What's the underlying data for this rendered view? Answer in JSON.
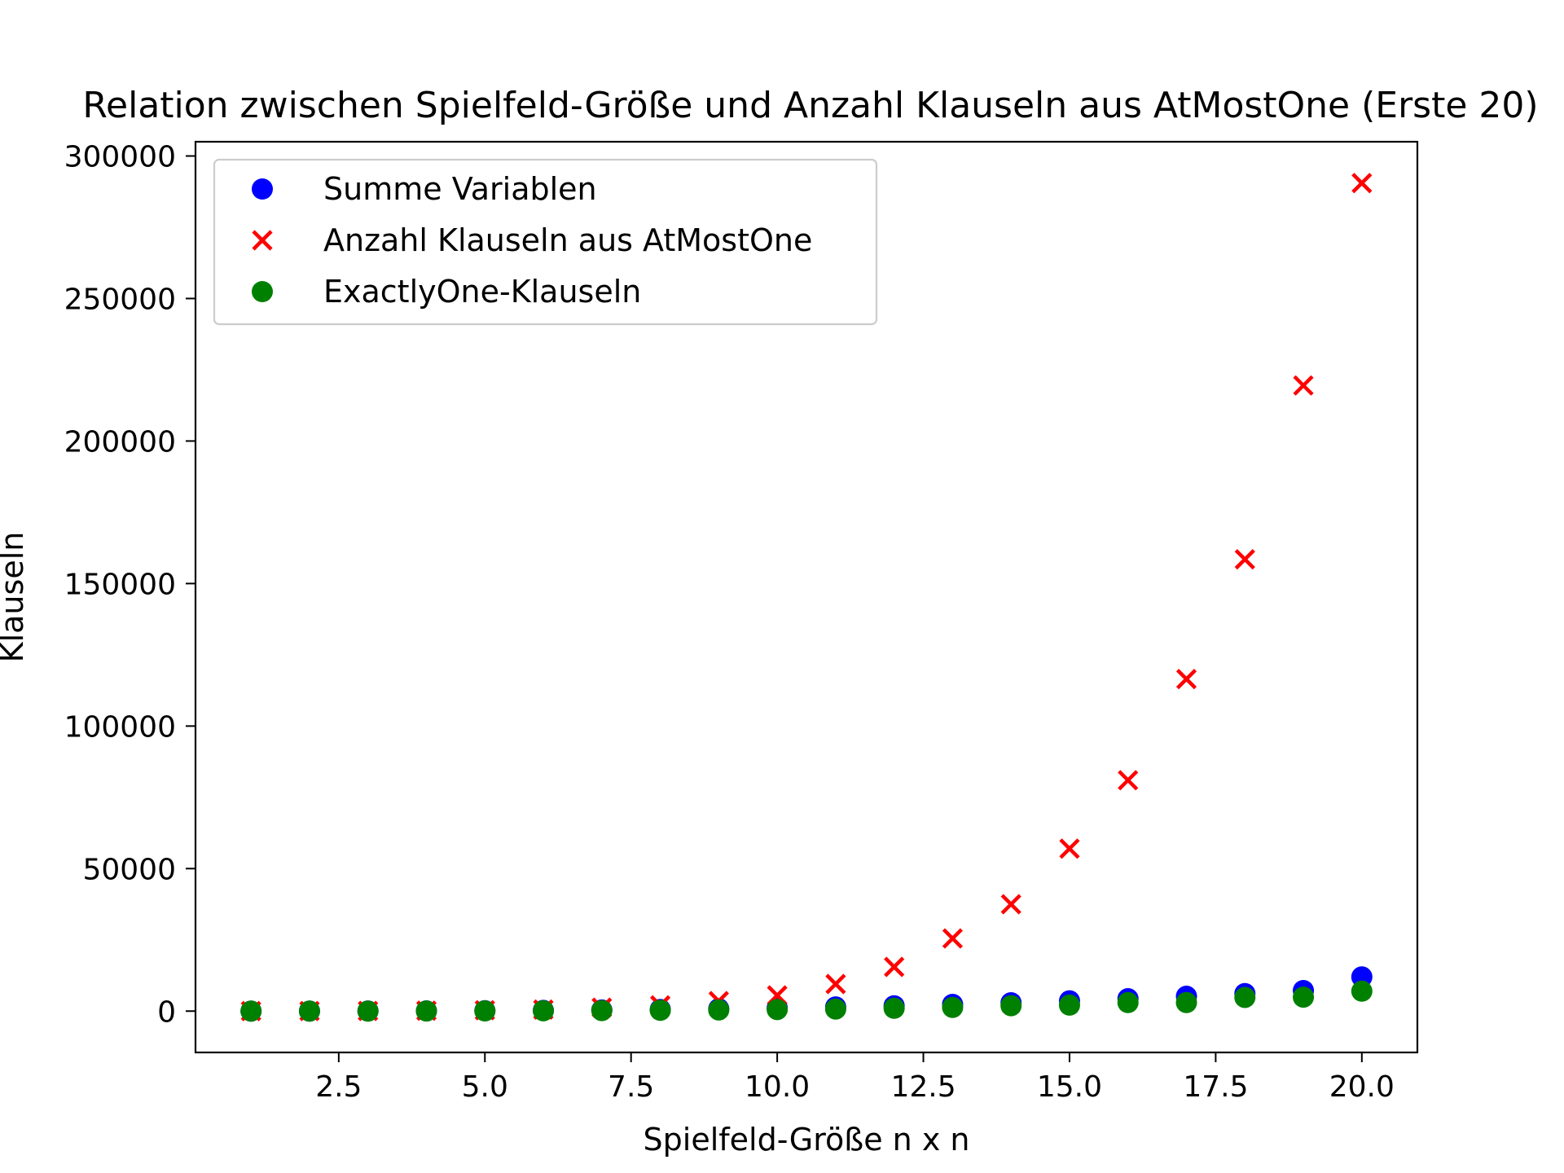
{
  "chart_data": {
    "type": "scatter",
    "title": "Relation zwischen Spielfeld-Größe und Anzahl Klauseln aus AtMostOne (Erste 20)",
    "xlabel": "Spielfeld-Größe n x n",
    "ylabel": "Klauseln",
    "xlim": [
      0.05,
      20.95
    ],
    "ylim": [
      -14500,
      305000
    ],
    "xticks": [
      2.5,
      5.0,
      7.5,
      10.0,
      12.5,
      15.0,
      17.5,
      20.0
    ],
    "xtick_labels": [
      "2.5",
      "5.0",
      "7.5",
      "10.0",
      "12.5",
      "15.0",
      "17.5",
      "20.0"
    ],
    "yticks": [
      0,
      50000,
      100000,
      150000,
      200000,
      250000,
      300000
    ],
    "ytick_labels": [
      "0",
      "50000",
      "100000",
      "150000",
      "200000",
      "250000",
      "300000"
    ],
    "grid": false,
    "legend_position": "upper-left",
    "x": [
      1,
      2,
      3,
      4,
      5,
      6,
      7,
      8,
      9,
      10,
      11,
      12,
      13,
      14,
      15,
      16,
      17,
      18,
      19,
      20
    ],
    "series": [
      {
        "name": "Summe Variablen",
        "marker": "circle",
        "color": "#0000ff",
        "values": [
          2,
          12,
          36,
          80,
          150,
          252,
          392,
          576,
          810,
          1100,
          1452,
          1872,
          2366,
          2940,
          3600,
          4352,
          5202,
          6156,
          7220,
          12000
        ]
      },
      {
        "name": "Anzahl Klauseln aus AtMostOne",
        "marker": "x",
        "color": "#ff0000",
        "values": [
          0,
          12,
          54,
          144,
          300,
          540,
          1200,
          2000,
          3500,
          5500,
          9500,
          15500,
          25500,
          37500,
          57000,
          81000,
          116500,
          158500,
          219500,
          290500
        ]
      },
      {
        "name": "ExactlyOne-Klauseln",
        "marker": "circle",
        "color": "#008000",
        "values": [
          1,
          6,
          18,
          40,
          75,
          126,
          196,
          288,
          405,
          550,
          726,
          1000,
          1300,
          1900,
          2100,
          3000,
          3000,
          4800,
          4900,
          7000
        ]
      }
    ]
  }
}
